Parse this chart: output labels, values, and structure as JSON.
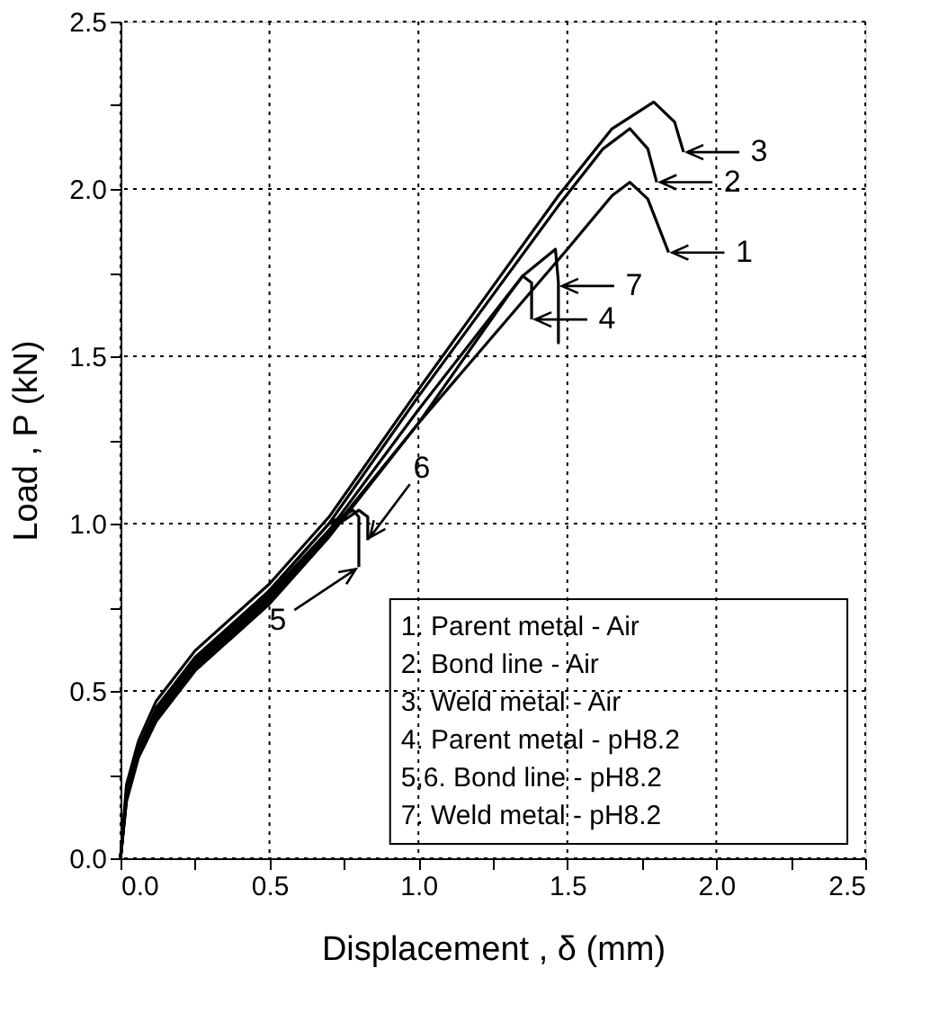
{
  "chart_data": {
    "type": "line",
    "xlabel": "Displacement , δ (mm)",
    "ylabel": "Load , P (kN)",
    "xlim": [
      0,
      2.5
    ],
    "ylim": [
      0,
      2.5
    ],
    "xticks": [
      {
        "value": 0,
        "label": "0.0"
      },
      {
        "value": 0.25,
        "label": null
      },
      0.5,
      {
        "value": 0.75,
        "label": null
      },
      {
        "value": 1,
        "label": "1.0"
      },
      {
        "value": 1.25,
        "label": null
      },
      1.5,
      {
        "value": 1.75,
        "label": null
      },
      {
        "value": 2,
        "label": "2.0"
      },
      {
        "value": 2.25,
        "label": null
      },
      2.5
    ],
    "yticks": [
      {
        "value": 0,
        "label": "0.0"
      },
      {
        "value": 0.25,
        "label": null
      },
      0.5,
      {
        "value": 0.75,
        "label": null
      },
      {
        "value": 1,
        "label": "1.0"
      },
      {
        "value": 1.25,
        "label": null
      },
      1.5,
      {
        "value": 1.75,
        "label": null
      },
      {
        "value": 2,
        "label": "2.0"
      },
      {
        "value": 2.25,
        "label": null
      },
      2.5
    ],
    "grid": true,
    "marker": "none",
    "line_style": "solid",
    "series": [
      {
        "color": "#000000",
        "x": [
          0,
          0.02,
          0.06,
          0.12,
          0.25,
          0.5,
          0.7,
          1.0,
          1.5,
          1.65,
          1.71,
          1.77,
          1.84
        ],
        "values": [
          0,
          0.18,
          0.31,
          0.42,
          0.57,
          0.77,
          0.97,
          1.3,
          1.82,
          1.98,
          2.02,
          1.97,
          1.81
        ]
      },
      {
        "color": "#000000",
        "x": [
          0,
          0.02,
          0.06,
          0.12,
          0.25,
          0.5,
          0.7,
          1.0,
          1.47,
          1.62,
          1.71,
          1.77,
          1.8
        ],
        "values": [
          0,
          0.2,
          0.33,
          0.45,
          0.6,
          0.8,
          1.0,
          1.38,
          1.95,
          2.12,
          2.18,
          2.12,
          2.02
        ]
      },
      {
        "color": "#000000",
        "x": [
          0,
          0.02,
          0.06,
          0.12,
          0.25,
          0.5,
          0.7,
          1.0,
          1.47,
          1.65,
          1.79,
          1.86,
          1.89
        ],
        "values": [
          0,
          0.22,
          0.35,
          0.47,
          0.62,
          0.82,
          1.02,
          1.4,
          1.98,
          2.18,
          2.26,
          2.2,
          2.11
        ]
      },
      {
        "color": "#000000",
        "x": [
          0,
          0.02,
          0.06,
          0.12,
          0.25,
          0.5,
          0.7,
          1.0,
          1.3,
          1.35,
          1.38,
          1.38
        ],
        "values": [
          0,
          0.17,
          0.3,
          0.41,
          0.56,
          0.76,
          0.96,
          1.3,
          1.68,
          1.74,
          1.72,
          1.61
        ]
      },
      {
        "color": "#000000",
        "x": [
          0,
          0.02,
          0.06,
          0.12,
          0.25,
          0.5,
          0.7,
          0.78,
          0.8,
          0.8
        ],
        "values": [
          0,
          0.19,
          0.32,
          0.44,
          0.59,
          0.8,
          1.0,
          1.04,
          1.02,
          0.87
        ]
      },
      {
        "color": "#000000",
        "x": [
          0,
          0.02,
          0.06,
          0.12,
          0.25,
          0.5,
          0.7,
          0.8,
          0.83,
          0.83
        ],
        "values": [
          0,
          0.18,
          0.31,
          0.43,
          0.58,
          0.79,
          0.98,
          1.04,
          1.02,
          0.95
        ]
      },
      {
        "color": "#000000",
        "x": [
          0,
          0.02,
          0.06,
          0.12,
          0.25,
          0.5,
          0.7,
          1.0,
          1.35,
          1.46,
          1.47,
          1.47,
          1.47
        ],
        "values": [
          0,
          0.19,
          0.32,
          0.44,
          0.58,
          0.78,
          0.98,
          1.34,
          1.74,
          1.82,
          1.72,
          1.54,
          1.71
        ]
      }
    ],
    "annotations": [
      {
        "text": "1",
        "x": 1.84,
        "y": 1.81
      },
      {
        "text": "2",
        "x": 1.8,
        "y": 2.02
      },
      {
        "text": "3",
        "x": 1.89,
        "y": 2.11
      },
      {
        "text": "4",
        "x": 1.38,
        "y": 1.61
      },
      {
        "text": "5",
        "x": 0.8,
        "y": 0.87
      },
      {
        "text": "6",
        "x": 0.83,
        "y": 0.95
      },
      {
        "text": "7",
        "x": 1.47,
        "y": 1.71
      },
      "1.    Parent metal - Air",
      "2.    Bond line - Air",
      "3.    Weld metal - Air",
      "4.    Parent metal - pH8.2",
      "5,6. Bond line - pH8.2",
      "7.    Weld metal - pH8.2"
    ]
  }
}
